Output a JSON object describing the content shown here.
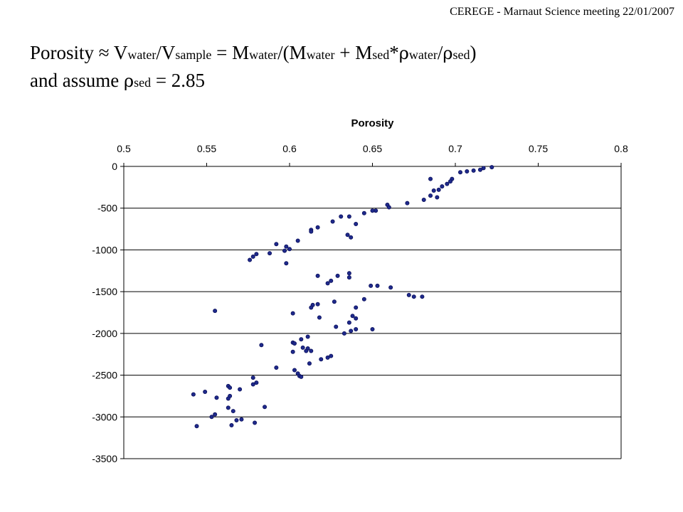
{
  "header": {
    "note": "CEREGE - Marnaut Science meeting 22/01/2007"
  },
  "formula": {
    "line1": {
      "t1": "Porosity ≈ V",
      "s1": "water",
      "t2": "/V",
      "s2": "sample",
      "t3": " = M",
      "s3": "water",
      "t4": "/(M",
      "s4": "water",
      "t5": " + M",
      "s5": "sed",
      "t6": "*",
      "g1": "ρ",
      "s6": "water",
      "t7": "/",
      "g2": "ρ",
      "s7": "sed",
      "t8": ")"
    },
    "line2": {
      "t1": "and assume ",
      "g1": "ρ",
      "s1": "sed",
      "t2": " = 2.85"
    }
  },
  "chart_data": {
    "type": "scatter",
    "title": "Porosity",
    "xlabel": "",
    "ylabel": "",
    "xlim": [
      0.5,
      0.8
    ],
    "ylim": [
      -3500,
      0
    ],
    "x_ticks": [
      "0.5",
      "0.55",
      "0.6",
      "0.65",
      "0.7",
      "0.75",
      "0.8"
    ],
    "y_ticks": [
      "0",
      "-500",
      "-1000",
      "-1500",
      "-2000",
      "-2500",
      "-3000",
      "-3500"
    ],
    "x_axis_position": "top",
    "grid": "horizontal",
    "legend": "none",
    "marker_color": "#1f2a8c",
    "points": [
      [
        0.722,
        -10
      ],
      [
        0.717,
        -20
      ],
      [
        0.715,
        -40
      ],
      [
        0.711,
        -50
      ],
      [
        0.707,
        -60
      ],
      [
        0.703,
        -70
      ],
      [
        0.698,
        -150
      ],
      [
        0.697,
        -180
      ],
      [
        0.695,
        -210
      ],
      [
        0.692,
        -240
      ],
      [
        0.69,
        -280
      ],
      [
        0.687,
        -290
      ],
      [
        0.685,
        -150
      ],
      [
        0.689,
        -370
      ],
      [
        0.685,
        -350
      ],
      [
        0.681,
        -400
      ],
      [
        0.671,
        -440
      ],
      [
        0.659,
        -460
      ],
      [
        0.66,
        -490
      ],
      [
        0.652,
        -530
      ],
      [
        0.65,
        -530
      ],
      [
        0.645,
        -560
      ],
      [
        0.64,
        -690
      ],
      [
        0.636,
        -600
      ],
      [
        0.631,
        -600
      ],
      [
        0.635,
        -820
      ],
      [
        0.637,
        -850
      ],
      [
        0.626,
        -660
      ],
      [
        0.617,
        -730
      ],
      [
        0.613,
        -760
      ],
      [
        0.613,
        -780
      ],
      [
        0.605,
        -890
      ],
      [
        0.6,
        -990
      ],
      [
        0.598,
        -960
      ],
      [
        0.597,
        -1010
      ],
      [
        0.598,
        -1160
      ],
      [
        0.592,
        -930
      ],
      [
        0.588,
        -1040
      ],
      [
        0.58,
        -1050
      ],
      [
        0.578,
        -1080
      ],
      [
        0.576,
        -1120
      ],
      [
        0.636,
        -1280
      ],
      [
        0.636,
        -1330
      ],
      [
        0.629,
        -1310
      ],
      [
        0.625,
        -1370
      ],
      [
        0.623,
        -1400
      ],
      [
        0.617,
        -1310
      ],
      [
        0.653,
        -1430
      ],
      [
        0.649,
        -1430
      ],
      [
        0.661,
        -1450
      ],
      [
        0.672,
        -1540
      ],
      [
        0.675,
        -1560
      ],
      [
        0.68,
        -1560
      ],
      [
        0.645,
        -1590
      ],
      [
        0.64,
        -1690
      ],
      [
        0.638,
        -1790
      ],
      [
        0.64,
        -1820
      ],
      [
        0.636,
        -1870
      ],
      [
        0.627,
        -1620
      ],
      [
        0.617,
        -1650
      ],
      [
        0.614,
        -1660
      ],
      [
        0.613,
        -1690
      ],
      [
        0.618,
        -1810
      ],
      [
        0.602,
        -1760
      ],
      [
        0.555,
        -1730
      ],
      [
        0.628,
        -1920
      ],
      [
        0.633,
        -2000
      ],
      [
        0.637,
        -1970
      ],
      [
        0.64,
        -1950
      ],
      [
        0.65,
        -1950
      ],
      [
        0.611,
        -2040
      ],
      [
        0.607,
        -2070
      ],
      [
        0.608,
        -2170
      ],
      [
        0.611,
        -2180
      ],
      [
        0.61,
        -2210
      ],
      [
        0.613,
        -2210
      ],
      [
        0.602,
        -2110
      ],
      [
        0.603,
        -2120
      ],
      [
        0.602,
        -2220
      ],
      [
        0.583,
        -2140
      ],
      [
        0.625,
        -2270
      ],
      [
        0.623,
        -2290
      ],
      [
        0.619,
        -2310
      ],
      [
        0.612,
        -2360
      ],
      [
        0.603,
        -2440
      ],
      [
        0.605,
        -2480
      ],
      [
        0.606,
        -2510
      ],
      [
        0.607,
        -2520
      ],
      [
        0.592,
        -2410
      ],
      [
        0.578,
        -2530
      ],
      [
        0.58,
        -2590
      ],
      [
        0.578,
        -2610
      ],
      [
        0.57,
        -2670
      ],
      [
        0.563,
        -2630
      ],
      [
        0.564,
        -2650
      ],
      [
        0.564,
        -2750
      ],
      [
        0.563,
        -2780
      ],
      [
        0.563,
        -2890
      ],
      [
        0.566,
        -2930
      ],
      [
        0.556,
        -2770
      ],
      [
        0.549,
        -2700
      ],
      [
        0.542,
        -2730
      ],
      [
        0.585,
        -2880
      ],
      [
        0.568,
        -3040
      ],
      [
        0.571,
        -3030
      ],
      [
        0.565,
        -3100
      ],
      [
        0.579,
        -3070
      ],
      [
        0.555,
        -2970
      ],
      [
        0.553,
        -3000
      ],
      [
        0.544,
        -3110
      ]
    ]
  }
}
